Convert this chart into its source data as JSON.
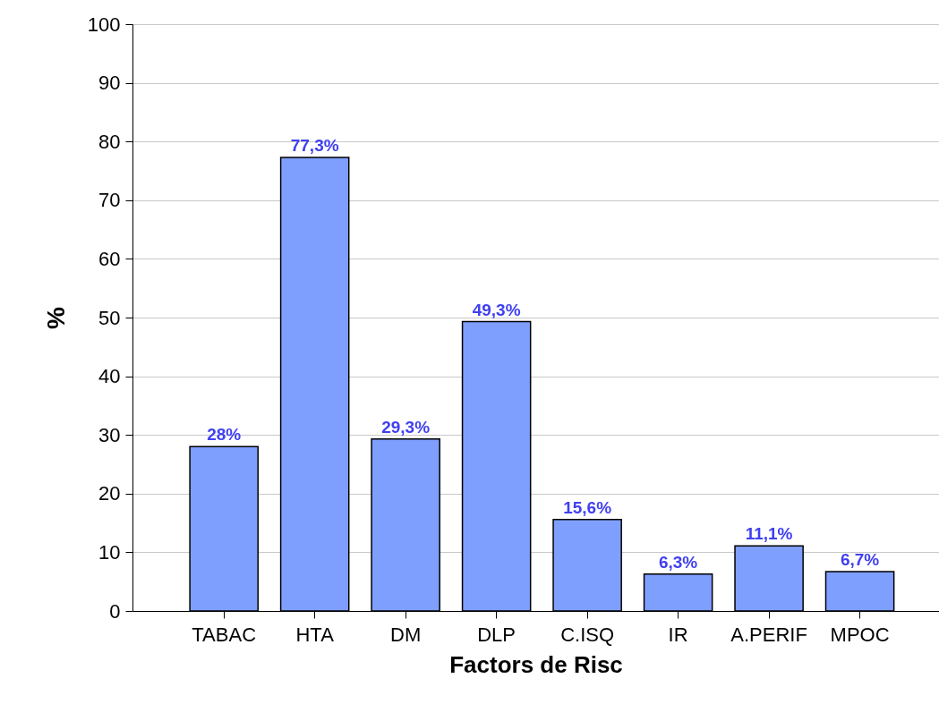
{
  "chart_data": {
    "type": "bar",
    "xlabel": "Factors de Risc",
    "ylabel": "%",
    "categories": [
      "TABAC",
      "HTA",
      "DM",
      "DLP",
      "C.ISQ",
      "IR",
      "A.PERIF",
      "MPOC"
    ],
    "values": [
      28,
      77.3,
      29.3,
      49.3,
      15.6,
      6.3,
      11.1,
      6.7
    ],
    "value_labels": [
      "28%",
      "77,3%",
      "29,3%",
      "49,3%",
      "15,6%",
      "6,3%",
      "11,1%",
      "6,7%"
    ],
    "color": "#7f9fff",
    "ylim": [
      0,
      100
    ],
    "yticks": [
      0,
      10,
      20,
      30,
      40,
      50,
      60,
      70,
      80,
      90,
      100
    ],
    "grid": "y"
  }
}
